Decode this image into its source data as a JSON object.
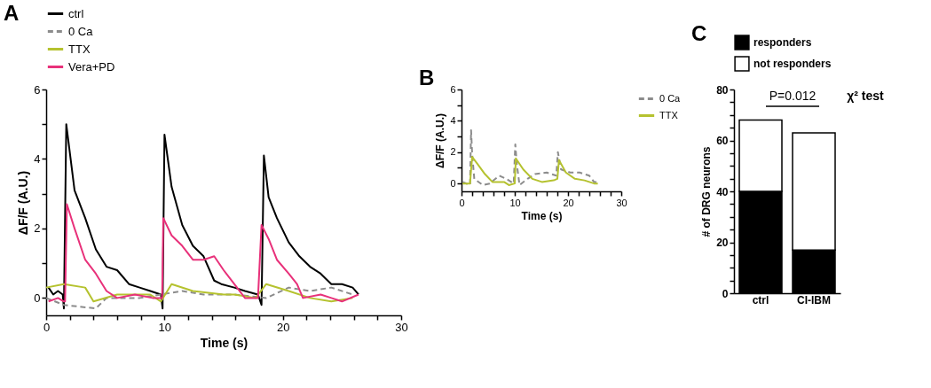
{
  "chart_data": [
    {
      "type": "line",
      "xlabel": "Time (s)",
      "ylabel": "ΔF/F (A.U.)",
      "annotations": [
        "A"
      ],
      "legend": "top left",
      "xlim": [
        0,
        30
      ],
      "xticks": [
        0,
        {
          "value": 2,
          "label": null
        },
        {
          "value": 4,
          "label": null
        },
        {
          "value": 6,
          "label": null
        },
        {
          "value": 8,
          "label": null
        },
        10,
        {
          "value": 12,
          "label": null
        },
        {
          "value": 14,
          "label": null
        },
        {
          "value": 16,
          "label": null
        },
        {
          "value": 18,
          "label": null
        },
        20,
        {
          "value": 22,
          "label": null
        },
        {
          "value": 24,
          "label": null
        },
        {
          "value": 26,
          "label": null
        },
        {
          "value": 28,
          "label": null
        },
        30
      ],
      "ylim": [
        -0.5,
        6
      ],
      "yticks": [
        0,
        {
          "value": 1,
          "label": null
        },
        2,
        {
          "value": 3,
          "label": null
        },
        4,
        {
          "value": 5,
          "label": null
        },
        6
      ],
      "series": [
        {
          "name": "ctrl",
          "color": "#000000",
          "line_style": "solid",
          "x": [
            0.2,
            0.6,
            1.0,
            1.4,
            1.5,
            1.7,
            2.4,
            3.3,
            4.2,
            5.1,
            6.0,
            7.0,
            7.9,
            8.8,
            9.7,
            9.84,
            10.0,
            10.6,
            11.5,
            12.4,
            13.3,
            14.2,
            14.8,
            15.9,
            16.8,
            17.9,
            18.2,
            18.4,
            18.8,
            19.5,
            20.5,
            21.4,
            22.3,
            23.2,
            24.1,
            25.0,
            25.9,
            26.4
          ],
          "values": [
            0.3,
            0.1,
            0.2,
            0.1,
            -0.3,
            5.0,
            3.1,
            2.3,
            1.4,
            0.9,
            0.8,
            0.4,
            0.3,
            0.2,
            0.1,
            -0.3,
            4.7,
            3.2,
            2.1,
            1.5,
            1.2,
            0.5,
            0.4,
            0.3,
            0.2,
            0.1,
            -0.2,
            4.1,
            2.9,
            2.3,
            1.6,
            1.2,
            0.9,
            0.7,
            0.4,
            0.4,
            0.3,
            0.1
          ]
        },
        {
          "name": "0 Ca",
          "color": "#8c8c8c",
          "line_style": "dashed",
          "x": [
            0.0,
            1.5,
            4.2,
            5.1,
            7.9,
            9.7,
            11.5,
            13.3,
            15.0,
            15.9,
            18.6,
            20.5,
            22.3,
            24.1,
            25.9
          ],
          "values": [
            0.0,
            -0.2,
            -0.3,
            0.0,
            0.0,
            0.1,
            0.2,
            0.1,
            0.1,
            0.1,
            0.0,
            0.3,
            0.2,
            0.3,
            0.1
          ]
        },
        {
          "name": "TTX",
          "color": "#b5c22f",
          "line_style": "solid",
          "x": [
            0.0,
            1.5,
            3.3,
            4.0,
            6.0,
            8.8,
            9.7,
            10.6,
            12.4,
            15.0,
            15.9,
            17.7,
            18.6,
            20.5,
            22.3,
            24.1,
            25.9
          ],
          "values": [
            0.3,
            0.4,
            0.3,
            -0.1,
            0.1,
            0.1,
            -0.1,
            0.4,
            0.2,
            0.1,
            0.1,
            0.0,
            0.4,
            0.2,
            0.0,
            -0.1,
            0.0
          ]
        },
        {
          "name": "Vera+PD",
          "color": "#e8317a",
          "line_style": "solid",
          "x": [
            0.2,
            1.0,
            1.5,
            1.6,
            1.75,
            2.4,
            3.3,
            4.2,
            5.1,
            6.0,
            7.5,
            9.0,
            9.8,
            9.9,
            10.6,
            11.5,
            12.4,
            13.3,
            14.2,
            15.0,
            15.9,
            16.8,
            17.9,
            18.2,
            18.8,
            19.5,
            20.5,
            21.2,
            21.7,
            23.2,
            24.1,
            25.0,
            26.4
          ],
          "values": [
            -0.1,
            0.0,
            -0.1,
            -0.1,
            2.7,
            2.0,
            1.1,
            0.7,
            0.2,
            0.0,
            0.1,
            0.0,
            0.0,
            2.3,
            1.8,
            1.5,
            1.1,
            1.1,
            1.2,
            0.8,
            0.4,
            0.0,
            0.0,
            2.1,
            1.7,
            1.1,
            0.7,
            0.4,
            0.0,
            0.1,
            0.0,
            -0.1,
            0.1
          ]
        }
      ]
    },
    {
      "type": "line",
      "xlabel": "Time (s)",
      "ylabel": "ΔF/F (A.U.)",
      "annotations": [
        "B"
      ],
      "legend": "right",
      "xlim": [
        0,
        30
      ],
      "xticks": [
        0,
        {
          "value": 2,
          "label": null
        },
        {
          "value": 4,
          "label": null
        },
        {
          "value": 6,
          "label": null
        },
        {
          "value": 8,
          "label": null
        },
        10,
        {
          "value": 12,
          "label": null
        },
        {
          "value": 14,
          "label": null
        },
        {
          "value": 16,
          "label": null
        },
        {
          "value": 18,
          "label": null
        },
        20,
        {
          "value": 22,
          "label": null
        },
        {
          "value": 24,
          "label": null
        },
        {
          "value": 26,
          "label": null
        },
        {
          "value": 28,
          "label": null
        },
        30
      ],
      "ylim": [
        -0.5,
        6
      ],
      "yticks": [
        0,
        {
          "value": 1,
          "label": null
        },
        2,
        {
          "value": 3,
          "label": null
        },
        4,
        {
          "value": 5,
          "label": null
        },
        6
      ],
      "series": [
        {
          "name": "0 Ca",
          "color": "#8c8c8c",
          "line_style": "dashed",
          "x": [
            0.2,
            1.6,
            1.8,
            2.0,
            2.4,
            4.0,
            5.3,
            7.1,
            8.4,
            9.8,
            10.1,
            10.4,
            10.9,
            12.4,
            13.8,
            16.0,
            17.8,
            18.1,
            18.7,
            20.4,
            22.2,
            24.0,
            24.9,
            25.6
          ],
          "values": [
            0.1,
            -0.1,
            3.4,
            1.9,
            0.3,
            -0.1,
            0.0,
            0.5,
            0.3,
            0.0,
            2.5,
            1.2,
            -0.1,
            0.3,
            0.6,
            0.7,
            0.5,
            2.0,
            0.9,
            0.7,
            0.7,
            0.5,
            0.1,
            0.1
          ]
        },
        {
          "name": "TTX",
          "color": "#b5c22f",
          "line_style": "solid",
          "x": [
            0.2,
            1.6,
            2.0,
            3.1,
            4.4,
            5.8,
            8.0,
            8.9,
            10.0,
            10.2,
            11.6,
            13.3,
            15.1,
            17.3,
            18.0,
            18.3,
            19.6,
            21.3,
            23.1,
            24.9,
            25.6
          ],
          "values": [
            0.0,
            0.0,
            1.7,
            1.2,
            0.6,
            0.1,
            0.1,
            -0.1,
            0.0,
            1.6,
            0.9,
            0.3,
            0.1,
            0.2,
            0.3,
            1.5,
            0.7,
            0.3,
            0.2,
            0.0,
            0.0
          ]
        }
      ]
    },
    {
      "type": "bar",
      "stacked": true,
      "ylabel": "# of DRG neurons",
      "annotations": [
        "C",
        "P=0.012",
        "χ² test"
      ],
      "legend": "top left",
      "categories": [
        "ctrl",
        "CI-IBM"
      ],
      "ylim": [
        0,
        80
      ],
      "yticks": [
        0,
        {
          "value": 5,
          "label": null
        },
        {
          "value": 10,
          "label": null
        },
        {
          "value": 15,
          "label": null
        },
        20,
        {
          "value": 25,
          "label": null
        },
        {
          "value": 30,
          "label": null
        },
        {
          "value": 35,
          "label": null
        },
        40,
        {
          "value": 45,
          "label": null
        },
        {
          "value": 50,
          "label": null
        },
        {
          "value": 55,
          "label": null
        },
        60,
        {
          "value": 65,
          "label": null
        },
        {
          "value": 70,
          "label": null
        },
        {
          "value": 75,
          "label": null
        },
        80
      ],
      "series": [
        {
          "name": "responders",
          "color": "#000000",
          "values": [
            40,
            17
          ]
        },
        {
          "name": "not responders",
          "color": "#ffffff",
          "values": [
            28,
            46
          ]
        }
      ]
    }
  ]
}
